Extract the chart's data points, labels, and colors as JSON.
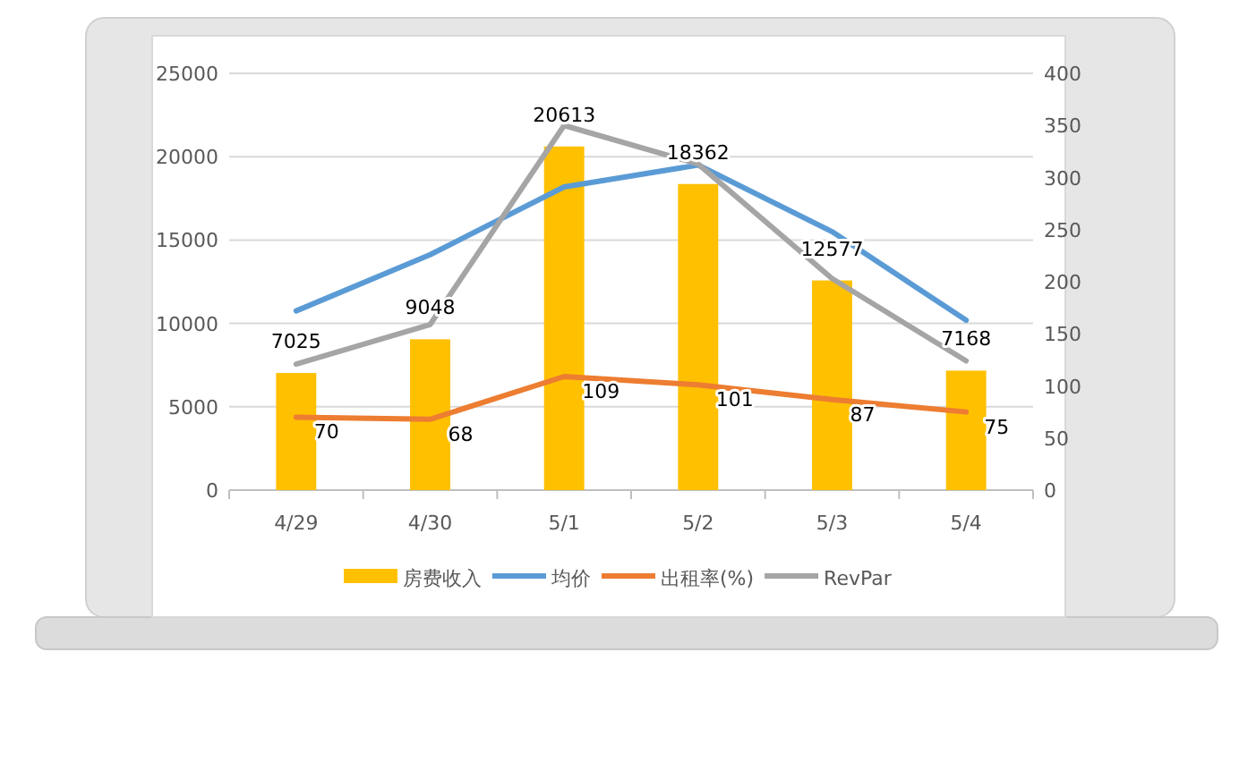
{
  "chart_data": {
    "type": "bar",
    "categories": [
      "4/29",
      "4/30",
      "5/1",
      "5/2",
      "5/3",
      "5/4"
    ],
    "series": [
      {
        "name": "房费收入",
        "color": "#ffc000",
        "values": [
          7025,
          9048,
          20613,
          18362,
          12577,
          7168
        ],
        "value_labels": [
          "7025",
          "9048",
          "20613",
          "18362",
          "12577",
          "7168"
        ]
      },
      {
        "name": "均价",
        "type": "line",
        "axis": "y2",
        "color": "#5b9bd5",
        "values": [
          172,
          226,
          291,
          312,
          248,
          163
        ]
      },
      {
        "name": "出租率(%)",
        "type": "line",
        "axis": "y2",
        "color": "#ed7d31",
        "values": [
          70,
          68,
          109,
          101,
          87,
          75
        ],
        "value_labels": [
          "70",
          "68",
          "109",
          "101",
          "87",
          "75"
        ]
      },
      {
        "name": "RevPar",
        "type": "line",
        "axis": "y2",
        "color": "#a5a5a5",
        "values": [
          121,
          159,
          350,
          313,
          203,
          124
        ]
      }
    ],
    "ylim": [
      0,
      25000
    ],
    "yticks": [
      0,
      5000,
      10000,
      15000,
      20000,
      25000
    ],
    "y2lim": [
      0,
      400
    ],
    "y2ticks": [
      0,
      50,
      100,
      150,
      200,
      250,
      300,
      350,
      400
    ],
    "grid": "y",
    "legend": "bottom",
    "marker": "none"
  }
}
